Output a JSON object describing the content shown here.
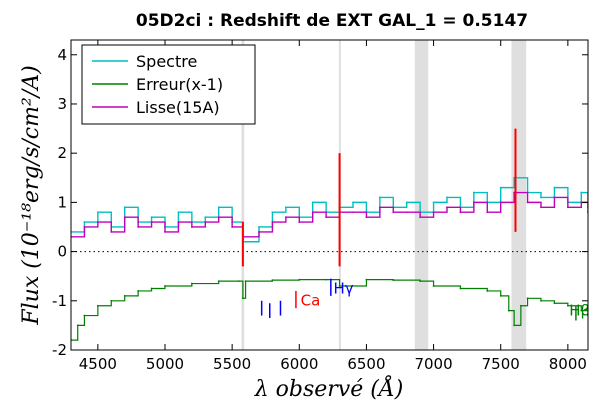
{
  "chart_data": {
    "type": "line",
    "title": "05D2ci : Redshift de EXT GAL_1 = 0.5147",
    "xlabel": "λ observé (Å)",
    "ylabel": "Flux (10⁻¹⁸erg/s/cm²/A)",
    "xlim": [
      4300,
      8150
    ],
    "ylim": [
      -2,
      4.3
    ],
    "xticks": [
      4500,
      5000,
      5500,
      6000,
      6500,
      7000,
      7500,
      8000
    ],
    "yticks": [
      -2,
      -1,
      0,
      1,
      2,
      3,
      4
    ],
    "xtick_labels": [
      "4500",
      "5000",
      "5500",
      "6000",
      "6500",
      "7000",
      "7500",
      "8000"
    ],
    "ytick_labels": [
      "-2",
      "-1",
      "0",
      "1",
      "2",
      "3",
      "4"
    ],
    "zero_line": 0,
    "legend_position": "upper-left",
    "series": [
      {
        "name": "Spectre",
        "color": "#00bfbf",
        "x": [
          4300,
          4400,
          4500,
          4600,
          4700,
          4800,
          4900,
          5000,
          5100,
          5200,
          5300,
          5400,
          5500,
          5580,
          5700,
          5800,
          5900,
          6000,
          6100,
          6200,
          6300,
          6400,
          6500,
          6600,
          6700,
          6800,
          6900,
          7000,
          7100,
          7200,
          7300,
          7400,
          7500,
          7600,
          7700,
          7800,
          7900,
          8000,
          8100,
          8150
        ],
        "y": [
          0.4,
          0.6,
          0.8,
          0.5,
          0.9,
          0.6,
          0.7,
          0.5,
          0.8,
          0.6,
          0.7,
          0.9,
          0.6,
          0.2,
          0.5,
          0.8,
          0.9,
          0.7,
          1.0,
          0.8,
          0.9,
          1.0,
          0.8,
          1.1,
          0.9,
          1.0,
          0.8,
          1.0,
          1.1,
          0.9,
          1.2,
          1.0,
          1.3,
          1.5,
          1.2,
          1.1,
          1.3,
          1.0,
          1.2,
          0.9
        ]
      },
      {
        "name": "Erreur(x-1)",
        "color": "#008000",
        "x": [
          4300,
          4350,
          4400,
          4500,
          4600,
          4700,
          4800,
          4900,
          5000,
          5200,
          5400,
          5550,
          5580,
          5600,
          5800,
          6000,
          6200,
          6300,
          6500,
          6700,
          6900,
          7000,
          7200,
          7400,
          7500,
          7560,
          7600,
          7650,
          7700,
          7800,
          7900,
          8000,
          8100,
          8150
        ],
        "y": [
          -1.8,
          -1.5,
          -1.3,
          -1.1,
          -1.0,
          -0.9,
          -0.8,
          -0.75,
          -0.7,
          -0.65,
          -0.6,
          -0.6,
          -0.95,
          -0.6,
          -0.58,
          -0.57,
          -0.57,
          -0.7,
          -0.57,
          -0.58,
          -0.6,
          -0.7,
          -0.75,
          -0.8,
          -0.9,
          -1.2,
          -1.5,
          -1.1,
          -0.95,
          -1.0,
          -1.05,
          -1.1,
          -1.2,
          -1.3
        ]
      },
      {
        "name": "Lisse(15A)",
        "color": "#bf00bf",
        "x": [
          4300,
          4400,
          4500,
          4600,
          4700,
          4800,
          4900,
          5000,
          5100,
          5200,
          5300,
          5400,
          5500,
          5580,
          5700,
          5800,
          5900,
          6000,
          6100,
          6200,
          6300,
          6400,
          6500,
          6600,
          6700,
          6800,
          6900,
          7000,
          7100,
          7200,
          7300,
          7400,
          7500,
          7600,
          7700,
          7800,
          7900,
          8000,
          8100,
          8150
        ],
        "y": [
          0.3,
          0.5,
          0.6,
          0.4,
          0.7,
          0.5,
          0.6,
          0.4,
          0.6,
          0.5,
          0.6,
          0.7,
          0.5,
          0.3,
          0.4,
          0.6,
          0.7,
          0.6,
          0.8,
          0.7,
          0.8,
          0.8,
          0.7,
          0.9,
          0.8,
          0.8,
          0.7,
          0.8,
          0.9,
          0.8,
          1.0,
          0.8,
          1.0,
          1.2,
          1.0,
          0.9,
          1.1,
          0.9,
          1.0,
          0.8
        ]
      }
    ],
    "shaded_bands": [
      [
        5570,
        5590
      ],
      [
        6295,
        6310
      ],
      [
        6860,
        6960
      ],
      [
        7580,
        7690
      ]
    ],
    "emission_spikes": [
      {
        "x": 5580,
        "y_min": -0.3,
        "y_max": 0.6,
        "color": "#ff0000"
      },
      {
        "x": 6300,
        "y_min": -0.3,
        "y_max": 2.0,
        "color": "#ff0000"
      },
      {
        "x": 7610,
        "y_min": 0.4,
        "y_max": 2.5,
        "color": "#ff0000"
      }
    ],
    "line_markers": [
      {
        "label": "",
        "color": "#0000ff",
        "lines": [
          {
            "x": 5720,
            "y_top": -1.0,
            "y_bottom": -1.3
          },
          {
            "x": 5780,
            "y_top": -1.05,
            "y_bottom": -1.35
          },
          {
            "x": 5860,
            "y_top": -1.0,
            "y_bottom": -1.3
          }
        ]
      },
      {
        "label": "Ca",
        "color": "#ff0000",
        "lines": [
          {
            "x": 5975,
            "y_top": -0.8,
            "y_bottom": -1.15
          }
        ],
        "label_x": 6010,
        "label_y": -1.1
      },
      {
        "label": "Hγ",
        "color": "#0000ff",
        "lines": [
          {
            "x": 6235,
            "y_top": -0.55,
            "y_bottom": -0.9
          }
        ],
        "label_x": 6255,
        "label_y": -0.85
      },
      {
        "label": "Hβ",
        "color": "#008000",
        "lines": [
          {
            "x": 8060,
            "y_top": -1.1,
            "y_bottom": -1.4
          }
        ],
        "label_x": 8010,
        "label_y": -1.3
      }
    ]
  }
}
